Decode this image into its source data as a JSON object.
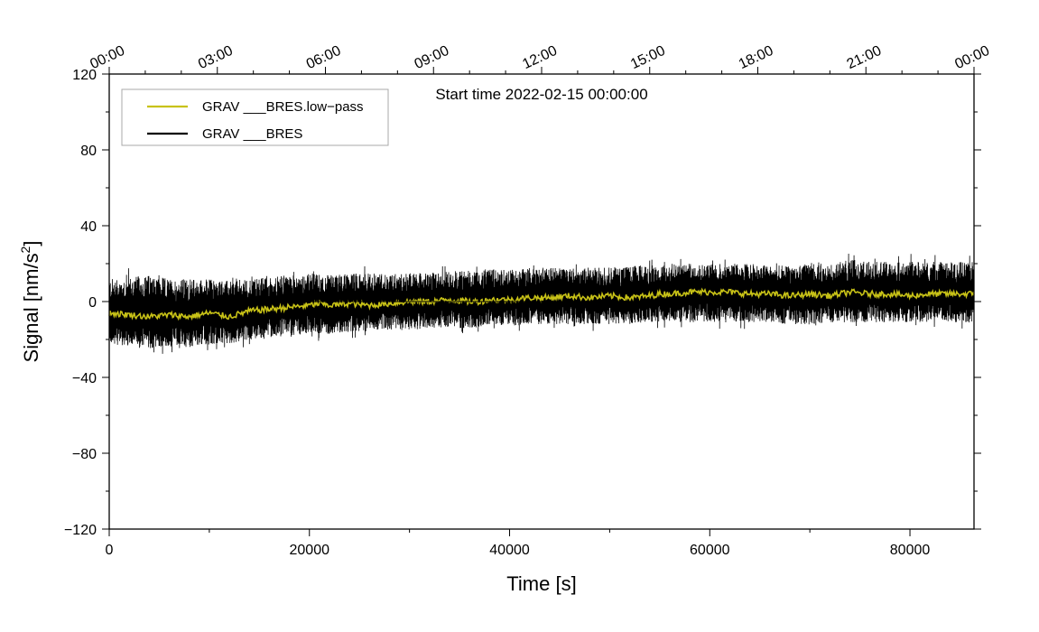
{
  "chart_data": {
    "type": "line",
    "annotation": "Start time 2022-02-15 00:00:00",
    "xlabel": "Time [s]",
    "ylabel": "Signal [nm/s",
    "ylabel_sup": "2",
    "ylabel_close": "]",
    "xlim": [
      0,
      86400
    ],
    "ylim": [
      -120,
      120
    ],
    "x_ticks": [
      0,
      20000,
      40000,
      60000,
      80000
    ],
    "x_tick_labels": [
      "0",
      "20000",
      "40000",
      "60000",
      "80000"
    ],
    "y_ticks": [
      -120,
      -80,
      -40,
      0,
      40,
      80,
      120
    ],
    "y_tick_labels": [
      "−120",
      "−80",
      "−40",
      "0",
      "40",
      "80",
      "120"
    ],
    "top_axis": {
      "ticks": [
        0,
        10800,
        21600,
        32400,
        43200,
        54000,
        64800,
        75600,
        86400
      ],
      "labels": [
        "00:00",
        "03:00",
        "06:00",
        "09:00",
        "12:00",
        "15:00",
        "18:00",
        "21:00",
        "00:00"
      ]
    },
    "legend": {
      "position": "top-left"
    },
    "series": [
      {
        "name": "GRAV ___BRES.low−pass",
        "color": "#c8c217",
        "x": [
          0,
          2000,
          4000,
          6000,
          8000,
          10000,
          12000,
          14000,
          16000,
          18000,
          20000,
          21000,
          22000,
          24000,
          26000,
          28000,
          30000,
          32000,
          34000,
          36000,
          37000,
          38000,
          40000,
          42000,
          44000,
          46000,
          48000,
          50000,
          52000,
          54000,
          55000,
          56000,
          58000,
          60000,
          62000,
          64000,
          66000,
          68000,
          70000,
          72000,
          74000,
          76000,
          78000,
          80000,
          82000,
          84000,
          86400
        ],
        "values": [
          -6,
          -7,
          -8,
          -7,
          -8,
          -6,
          -8,
          -5,
          -4,
          -3,
          -2,
          -1,
          -2,
          -1,
          -2,
          -1,
          0,
          0,
          1,
          0,
          0,
          1,
          1,
          2,
          2,
          3,
          2,
          3,
          2,
          3,
          4,
          4,
          5,
          5,
          5,
          4,
          4,
          3,
          4,
          3,
          5,
          4,
          4,
          3,
          4,
          4,
          4
        ]
      },
      {
        "name": "GRAV ___BRES",
        "color": "#000000",
        "x": [
          0,
          2000,
          4000,
          6000,
          8000,
          10000,
          12000,
          14000,
          16000,
          18000,
          20000,
          22000,
          24000,
          26000,
          28000,
          30000,
          32000,
          34000,
          36000,
          38000,
          40000,
          42000,
          44000,
          46000,
          48000,
          50000,
          52000,
          54000,
          56000,
          58000,
          60000,
          62000,
          64000,
          66000,
          68000,
          70000,
          72000,
          74000,
          76000,
          78000,
          80000,
          82000,
          84000,
          86400
        ],
        "upper": [
          12,
          13,
          14,
          12,
          12,
          12,
          11,
          12,
          13,
          14,
          15,
          14,
          15,
          15,
          15,
          15,
          15,
          16,
          17,
          17,
          17,
          18,
          18,
          18,
          18,
          18,
          19,
          19,
          20,
          20,
          20,
          20,
          20,
          19,
          19,
          20,
          20,
          22,
          21,
          21,
          21,
          21,
          21,
          21
        ],
        "lower": [
          -22,
          -24,
          -25,
          -24,
          -24,
          -23,
          -22,
          -20,
          -19,
          -18,
          -17,
          -17,
          -16,
          -15,
          -15,
          -15,
          -14,
          -14,
          -14,
          -13,
          -13,
          -12,
          -12,
          -12,
          -12,
          -12,
          -12,
          -11,
          -11,
          -11,
          -11,
          -11,
          -11,
          -11,
          -12,
          -12,
          -11,
          -11,
          -11,
          -11,
          -11,
          -11,
          -11,
          -11
        ]
      }
    ]
  }
}
